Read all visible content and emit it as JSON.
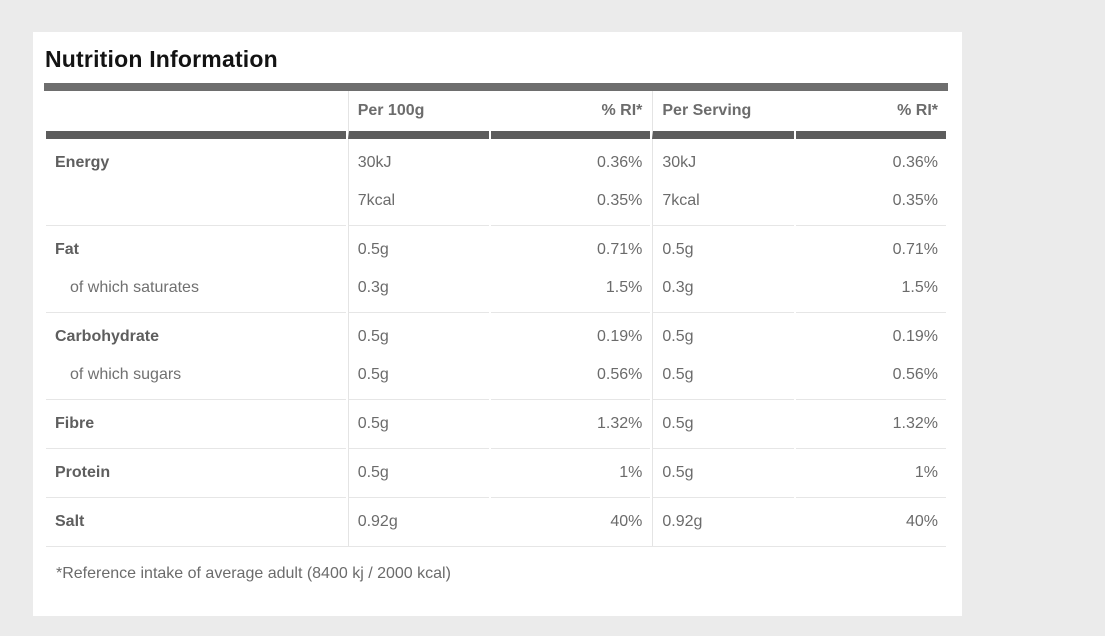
{
  "page": {
    "background_color": "#ebebeb",
    "card_color": "#ffffff",
    "bar_top_color": "#6e6e6e",
    "bar_bottom_color": "#5c5c5c"
  },
  "title": "Nutrition Information",
  "table": {
    "headers": {
      "label": "",
      "per_100g": "Per 100g",
      "ri_100g": "% RI*",
      "per_serving": "Per Serving",
      "ri_serving": "% RI*"
    },
    "rows": [
      {
        "label": "Energy",
        "amount_100g": "30kJ",
        "ri_100g": "0.36%",
        "amount_serving": "30kJ",
        "ri_serving": "0.36%"
      },
      {
        "label": "",
        "amount_100g": "7kcal",
        "ri_100g": "0.35%",
        "amount_serving": "7kcal",
        "ri_serving": "0.35%"
      },
      {
        "label": "Fat",
        "amount_100g": "0.5g",
        "ri_100g": "0.71%",
        "amount_serving": "0.5g",
        "ri_serving": "0.71%"
      },
      {
        "label": "of which saturates",
        "amount_100g": "0.3g",
        "ri_100g": "1.5%",
        "amount_serving": "0.3g",
        "ri_serving": "1.5%"
      },
      {
        "label": "Carbohydrate",
        "amount_100g": "0.5g",
        "ri_100g": "0.19%",
        "amount_serving": "0.5g",
        "ri_serving": "0.19%"
      },
      {
        "label": "of which sugars",
        "amount_100g": "0.5g",
        "ri_100g": "0.56%",
        "amount_serving": "0.5g",
        "ri_serving": "0.56%"
      },
      {
        "label": "Fibre",
        "amount_100g": "0.5g",
        "ri_100g": "1.32%",
        "amount_serving": "0.5g",
        "ri_serving": "1.32%"
      },
      {
        "label": "Protein",
        "amount_100g": "0.5g",
        "ri_100g": "1%",
        "amount_serving": "0.5g",
        "ri_serving": "1%"
      },
      {
        "label": "Salt",
        "amount_100g": "0.92g",
        "ri_100g": "40%",
        "amount_serving": "0.92g",
        "ri_serving": "40%"
      }
    ],
    "footnote": "*Reference intake of average adult (8400 kj / 2000 kcal)"
  }
}
